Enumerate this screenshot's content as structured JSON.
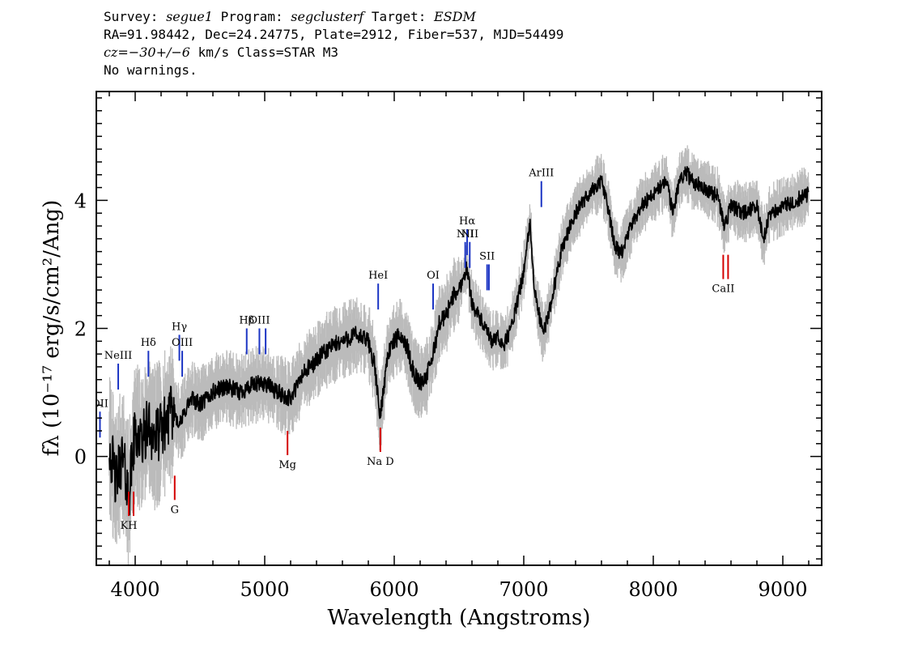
{
  "header": {
    "survey_label": "Survey:",
    "survey_value": "segue1",
    "program_label": "Program:",
    "program_value": "segclusterf",
    "target_label": "Target:",
    "target_value": "ESDM",
    "line2": "RA=91.98442, Dec=24.24775, Plate=2912, Fiber=537, MJD=54499",
    "cz_label": "cz=",
    "cz_value": "−30+/−6",
    "cz_unit": "km/s Class=STAR M3",
    "line4": "No warnings."
  },
  "chart_data": {
    "type": "line",
    "xlabel": "Wavelength (Angstroms)",
    "ylabel": "fλ (10⁻¹⁷ erg/s/cm²/Ang)",
    "xlim": [
      3700,
      9300
    ],
    "ylim": [
      -1.7,
      5.7
    ],
    "x_ticks": [
      4000,
      5000,
      6000,
      7000,
      8000,
      9000
    ],
    "y_ticks": [
      0,
      2,
      4
    ],
    "series": [
      {
        "role": "flux",
        "color": "#000000",
        "points": [
          [
            3800,
            0.2
          ],
          [
            3850,
            -0.4
          ],
          [
            3900,
            0.0
          ],
          [
            3950,
            -0.6
          ],
          [
            4000,
            0.4
          ],
          [
            4050,
            0.2
          ],
          [
            4100,
            0.5
          ],
          [
            4150,
            0.3
          ],
          [
            4200,
            0.4
          ],
          [
            4250,
            0.6
          ],
          [
            4300,
            0.7
          ],
          [
            4350,
            0.5
          ],
          [
            4400,
            0.8
          ],
          [
            4450,
            0.9
          ],
          [
            4500,
            0.8
          ],
          [
            4600,
            1.0
          ],
          [
            4700,
            1.1
          ],
          [
            4800,
            1.0
          ],
          [
            4900,
            1.1
          ],
          [
            5000,
            1.15
          ],
          [
            5100,
            1.0
          ],
          [
            5200,
            0.9
          ],
          [
            5300,
            1.3
          ],
          [
            5400,
            1.5
          ],
          [
            5500,
            1.7
          ],
          [
            5600,
            1.8
          ],
          [
            5700,
            1.9
          ],
          [
            5800,
            1.8
          ],
          [
            5850,
            1.4
          ],
          [
            5890,
            0.6
          ],
          [
            5950,
            1.6
          ],
          [
            6000,
            1.8
          ],
          [
            6050,
            1.9
          ],
          [
            6100,
            1.7
          ],
          [
            6150,
            1.3
          ],
          [
            6200,
            1.15
          ],
          [
            6250,
            1.25
          ],
          [
            6300,
            1.6
          ],
          [
            6350,
            2.1
          ],
          [
            6400,
            2.2
          ],
          [
            6450,
            2.5
          ],
          [
            6500,
            2.6
          ],
          [
            6560,
            2.95
          ],
          [
            6600,
            2.4
          ],
          [
            6650,
            2.2
          ],
          [
            6700,
            2.0
          ],
          [
            6750,
            1.8
          ],
          [
            6800,
            1.85
          ],
          [
            6850,
            1.75
          ],
          [
            6900,
            2.0
          ],
          [
            6950,
            2.4
          ],
          [
            7000,
            2.9
          ],
          [
            7050,
            3.65
          ],
          [
            7080,
            2.6
          ],
          [
            7150,
            1.9
          ],
          [
            7200,
            2.3
          ],
          [
            7250,
            2.8
          ],
          [
            7300,
            3.3
          ],
          [
            7400,
            3.8
          ],
          [
            7500,
            4.1
          ],
          [
            7600,
            4.3
          ],
          [
            7650,
            3.9
          ],
          [
            7700,
            3.3
          ],
          [
            7750,
            3.15
          ],
          [
            7800,
            3.45
          ],
          [
            7900,
            3.9
          ],
          [
            8000,
            4.1
          ],
          [
            8100,
            4.3
          ],
          [
            8150,
            3.8
          ],
          [
            8200,
            4.3
          ],
          [
            8250,
            4.45
          ],
          [
            8300,
            4.3
          ],
          [
            8400,
            4.2
          ],
          [
            8500,
            4.05
          ],
          [
            8550,
            3.6
          ],
          [
            8600,
            3.9
          ],
          [
            8700,
            3.8
          ],
          [
            8800,
            3.9
          ],
          [
            8850,
            3.4
          ],
          [
            8900,
            3.8
          ],
          [
            9000,
            3.9
          ],
          [
            9100,
            4.0
          ],
          [
            9200,
            4.1
          ]
        ]
      },
      {
        "role": "error",
        "color": "#bbbbbb"
      }
    ],
    "emission_lines": [
      {
        "label": "OII",
        "wavelength": 3728,
        "y": 0.7,
        "color": "#1c35c4"
      },
      {
        "label": "NeIII",
        "wavelength": 3869,
        "y": 1.45,
        "color": "#1c35c4"
      },
      {
        "label": "Hδ",
        "wavelength": 4102,
        "y": 1.65,
        "color": "#1c35c4"
      },
      {
        "label": "Hγ",
        "wavelength": 4341,
        "y": 1.9,
        "color": "#1c35c4"
      },
      {
        "label": "OIII",
        "wavelength": 4363,
        "y": 1.65,
        "color": "#1c35c4"
      },
      {
        "label": "Hβ",
        "wavelength": 4861,
        "y": 2.0,
        "color": "#1c35c4"
      },
      {
        "label": "OIII",
        "wavelength": 4959,
        "y": 2.0,
        "color": "#1c35c4"
      },
      {
        "label": "",
        "wavelength": 5007,
        "y": 2.0,
        "color": "#1c35c4"
      },
      {
        "label": "HeI",
        "wavelength": 5876,
        "y": 2.7,
        "color": "#1c35c4"
      },
      {
        "label": "OI",
        "wavelength": 6300,
        "y": 2.7,
        "color": "#1c35c4"
      },
      {
        "label": "NII",
        "wavelength": 6548,
        "y": 3.35,
        "color": "#1c35c4"
      },
      {
        "label": "Hα",
        "wavelength": 6563,
        "y": 3.55,
        "color": "#1c35c4"
      },
      {
        "label": "NII",
        "wavelength": 6583,
        "y": 3.35,
        "color": "#1c35c4"
      },
      {
        "label": "SII",
        "wavelength": 6717,
        "y": 3.0,
        "color": "#1c35c4"
      },
      {
        "label": "",
        "wavelength": 6731,
        "y": 3.0,
        "color": "#1c35c4"
      },
      {
        "label": "ArIII",
        "wavelength": 7136,
        "y": 4.3,
        "color": "#1c35c4"
      }
    ],
    "absorption_lines": [
      {
        "label": "KH",
        "wavelength": 3950,
        "y": -0.55,
        "color": "#d40000"
      },
      {
        "label": "G",
        "wavelength": 4305,
        "y": -0.3,
        "color": "#d40000"
      },
      {
        "label": "Mg",
        "wavelength": 5176,
        "y": 0.4,
        "color": "#d40000"
      },
      {
        "label": "Na D",
        "wavelength": 5893,
        "y": 0.45,
        "color": "#d40000"
      },
      {
        "label": "CaII",
        "wavelength": 8540,
        "y": 3.15,
        "color": "#d40000"
      }
    ],
    "grid": false,
    "legend": "none"
  }
}
